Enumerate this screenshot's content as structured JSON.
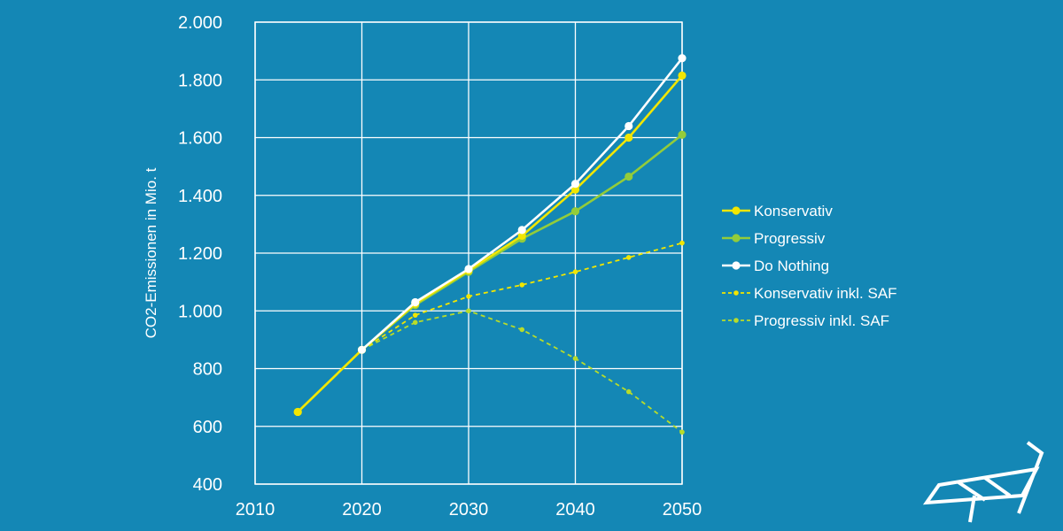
{
  "chart_data": {
    "type": "line",
    "ylabel": "CO2-Emissionen in Mio. t",
    "xlim": [
      2010,
      2050
    ],
    "ylim": [
      400,
      2000
    ],
    "xticks": [
      2010,
      2020,
      2030,
      2040,
      2050
    ],
    "xtick_labels": [
      "2010",
      "2020",
      "2030",
      "2040",
      "2050"
    ],
    "yticks": [
      400,
      600,
      800,
      1000,
      1200,
      1400,
      1600,
      1800,
      2000
    ],
    "ytick_labels": [
      "400",
      "600",
      "800",
      "1.000",
      "1.200",
      "1.400",
      "1.600",
      "1.800",
      "2.000"
    ],
    "grid": true,
    "legend_position": "right",
    "series": [
      {
        "name": "Konservativ",
        "color": "#f2e600",
        "style": "solid",
        "x": [
          2014,
          2020,
          2025,
          2030,
          2035,
          2040,
          2045,
          2050
        ],
        "y": [
          650,
          865,
          1025,
          1140,
          1260,
          1420,
          1600,
          1815
        ]
      },
      {
        "name": "Progressiv",
        "color": "#93cc3a",
        "style": "solid",
        "x": [
          2014,
          2020,
          2025,
          2030,
          2035,
          2040,
          2045,
          2050
        ],
        "y": [
          650,
          865,
          1020,
          1135,
          1250,
          1345,
          1465,
          1610
        ]
      },
      {
        "name": "Do Nothing",
        "color": "#ffffff",
        "style": "solid",
        "x": [
          2020,
          2025,
          2030,
          2035,
          2040,
          2045,
          2050
        ],
        "y": [
          865,
          1030,
          1145,
          1280,
          1440,
          1640,
          1875
        ]
      },
      {
        "name": "Konservativ inkl. SAF",
        "color": "#f2e600",
        "style": "dashed",
        "x": [
          2020,
          2025,
          2030,
          2035,
          2040,
          2045,
          2050
        ],
        "y": [
          865,
          985,
          1050,
          1090,
          1135,
          1185,
          1235
        ]
      },
      {
        "name": "Progressiv inkl. SAF",
        "color": "#b8dc2a",
        "style": "dashed",
        "x": [
          2020,
          2025,
          2030,
          2035,
          2040,
          2045,
          2050
        ],
        "y": [
          865,
          960,
          1000,
          935,
          835,
          720,
          580
        ]
      }
    ]
  }
}
